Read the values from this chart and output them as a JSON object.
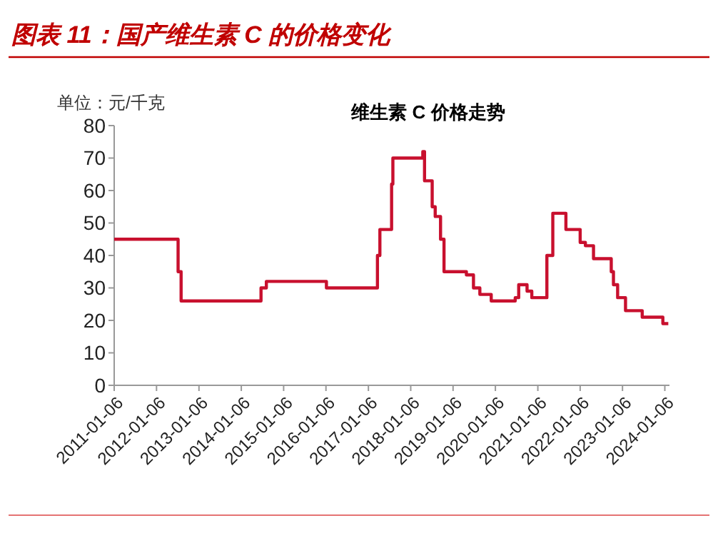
{
  "chart_data": {
    "type": "step",
    "title": "图表 11：国产维生素 C 的价格变化",
    "subtitle": "维生素 C 价格走势",
    "ylabel": "单位：元/千克",
    "x": [
      "2011-01-06",
      "2012-07-10",
      "2012-08-05",
      "2014-06-25",
      "2014-08-10",
      "2016-01-10",
      "2017-03-25",
      "2017-04-15",
      "2017-07-25",
      "2017-08-05",
      "2018-04-20",
      "2018-05-05",
      "2018-07-10",
      "2018-08-05",
      "2018-09-20",
      "2018-10-20",
      "2019-05-01",
      "2019-07-01",
      "2019-08-25",
      "2019-12-01",
      "2020-06-25",
      "2020-07-25",
      "2020-10-05",
      "2020-11-15",
      "2021-03-25",
      "2021-05-15",
      "2021-09-05",
      "2022-01-06",
      "2022-02-20",
      "2022-05-01",
      "2022-10-01",
      "2022-10-20",
      "2022-11-25",
      "2023-02-01",
      "2023-06-25",
      "2023-12-20",
      "2024-02-05"
    ],
    "series": [
      {
        "color": "#c8102e",
        "values": [
          45,
          35,
          26,
          30,
          32,
          30,
          40,
          48,
          62,
          70,
          72,
          63,
          55,
          52,
          45,
          35,
          34,
          30,
          28,
          26,
          27,
          31,
          29,
          27,
          40,
          53,
          48,
          44,
          43,
          39,
          35,
          31,
          27,
          23,
          21,
          19,
          19
        ]
      }
    ],
    "xlim": [
      "2011-01-06",
      "2024-02-15"
    ],
    "xticks": [
      {
        "value": "2011-01-06",
        "label": "2011-01-06"
      },
      {
        "value": "2012-01-06",
        "label": "2012-01-06"
      },
      {
        "value": "2013-01-06",
        "label": "2013-01-06"
      },
      {
        "value": "2014-01-06",
        "label": "2014-01-06"
      },
      {
        "value": "2015-01-06",
        "label": "2015-01-06"
      },
      {
        "value": "2016-01-06",
        "label": "2016-01-06"
      },
      {
        "value": "2017-01-06",
        "label": "2017-01-06"
      },
      {
        "value": "2018-01-06",
        "label": "2018-01-06"
      },
      {
        "value": "2019-01-06",
        "label": "2019-01-06"
      },
      {
        "value": "2020-01-06",
        "label": "2020-01-06"
      },
      {
        "value": "2021-01-06",
        "label": "2021-01-06"
      },
      {
        "value": "2022-01-06",
        "label": "2022-01-06"
      },
      {
        "value": "2023-01-06",
        "label": "2023-01-06"
      },
      {
        "value": "2024-01-06",
        "label": "2024-01-06"
      }
    ],
    "ylim": [
      0,
      80
    ],
    "yticks": [
      0,
      10,
      20,
      30,
      40,
      50,
      60,
      70,
      80
    ]
  }
}
